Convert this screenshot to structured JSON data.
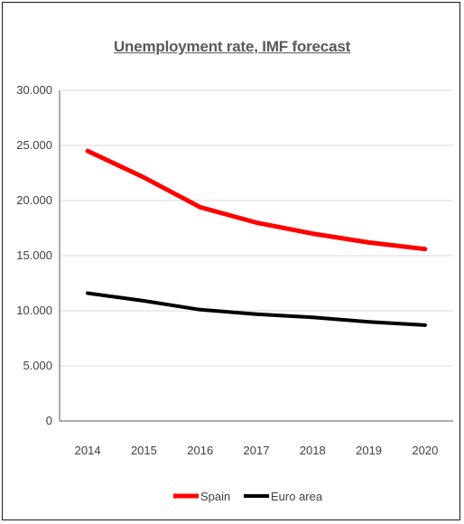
{
  "chart_data": {
    "type": "line",
    "title": "Unemployment rate, IMF forecast",
    "x": [
      "2014",
      "2015",
      "2016",
      "2017",
      "2018",
      "2019",
      "2020"
    ],
    "series": [
      {
        "name": "Spain",
        "color": "#ff0000",
        "values": [
          24.5,
          22.1,
          19.4,
          18.0,
          17.0,
          16.2,
          15.6
        ]
      },
      {
        "name": "Euro area",
        "color": "#000000",
        "values": [
          11.6,
          10.9,
          10.1,
          9.7,
          9.4,
          9.0,
          8.7
        ]
      }
    ],
    "y_ticks": [
      {
        "value": 0,
        "label": "0"
      },
      {
        "value": 5,
        "label": "5.000"
      },
      {
        "value": 10,
        "label": "10.000"
      },
      {
        "value": 15,
        "label": "15.000"
      },
      {
        "value": 20,
        "label": "20.000"
      },
      {
        "value": 25,
        "label": "25.000"
      },
      {
        "value": 30,
        "label": "30.000"
      }
    ],
    "ylim": [
      0,
      30
    ],
    "xlabel": "",
    "ylabel": "",
    "grid": "horizontal",
    "legend_position": "bottom"
  }
}
